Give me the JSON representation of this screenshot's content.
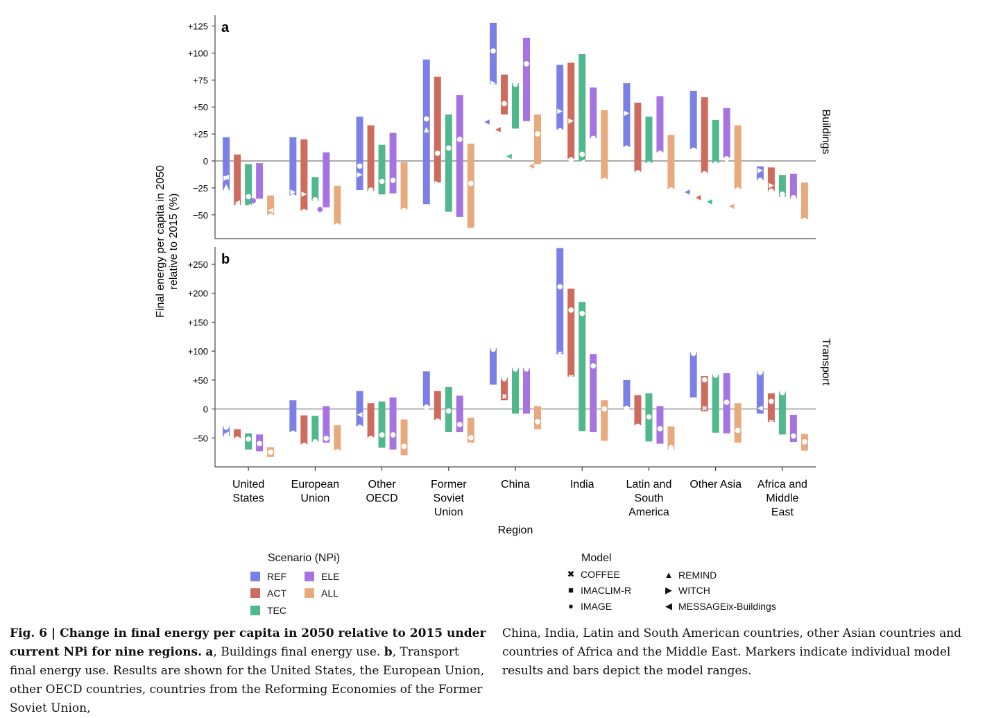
{
  "chart_data": [
    {
      "type": "range-bar",
      "panel_label": "a",
      "panel_name": "Buildings",
      "ylabel": "Final energy per capita in 2050\nrelative to 2015 (%)",
      "xlabel": "Region",
      "ylim": [
        -72,
        135
      ],
      "yticks": [
        -50,
        -25,
        0,
        25,
        50,
        75,
        100,
        125
      ],
      "yticklabels": [
        "−50",
        "−25",
        "0",
        "+25",
        "+50",
        "+75",
        "+100",
        "+125"
      ],
      "categories": [
        "United\nStates",
        "European\nUnion",
        "Other\nOECD",
        "Former\nSoviet\nUnion",
        "China",
        "India",
        "Latin and\nSouth\nAmerica",
        "Other Asia",
        "Africa and\nMiddle\nEast"
      ],
      "series": [
        {
          "name": "REF",
          "ranges": [
            [
              -27,
              22
            ],
            [
              -32,
              22
            ],
            [
              -27,
              41
            ],
            [
              -40,
              94
            ],
            [
              71,
              128
            ],
            [
              29,
              89
            ],
            [
              13,
              72
            ],
            [
              11,
              65
            ],
            [
              -18,
              -5
            ]
          ]
        },
        {
          "name": "ACT",
          "ranges": [
            [
              -41,
              6
            ],
            [
              -46,
              20
            ],
            [
              -28,
              33
            ],
            [
              -20,
              78
            ],
            [
              43,
              80
            ],
            [
              2,
              91
            ],
            [
              -10,
              54
            ],
            [
              -11,
              59
            ],
            [
              -28,
              -6
            ]
          ]
        },
        {
          "name": "TEC",
          "ranges": [
            [
              -41,
              -3
            ],
            [
              -37,
              -15
            ],
            [
              -31,
              15
            ],
            [
              -47,
              43
            ],
            [
              30,
              72
            ],
            [
              0,
              99
            ],
            [
              -2,
              41
            ],
            [
              -2,
              38
            ],
            [
              -33,
              -13
            ]
          ]
        },
        {
          "name": "ELE",
          "ranges": [
            [
              -35,
              -2
            ],
            [
              -43,
              8
            ],
            [
              -30,
              26
            ],
            [
              -52,
              61
            ],
            [
              37,
              114
            ],
            [
              21,
              68
            ],
            [
              8,
              60
            ],
            [
              3,
              49
            ],
            [
              -35,
              -12
            ]
          ]
        },
        {
          "name": "ALL",
          "ranges": [
            [
              -50,
              -32
            ],
            [
              -59,
              -23
            ],
            [
              -45,
              -1
            ],
            [
              -62,
              16
            ],
            [
              -3,
              43
            ],
            [
              -17,
              47
            ],
            [
              -26,
              24
            ],
            [
              -26,
              33
            ],
            [
              -54,
              -20
            ]
          ]
        }
      ],
      "markers": {
        "REF": [
          [
            "REMIND",
            0,
            -23
          ],
          [
            "WITCH",
            0,
            -15
          ],
          [
            "IMAGE",
            0,
            -27
          ],
          [
            "MESSAGEix-Buildings",
            0,
            -14
          ],
          [
            "IMAGE",
            1,
            -32
          ],
          [
            "WITCH",
            1,
            -28
          ],
          [
            "IMAGE",
            2,
            -4
          ],
          [
            "WITCH",
            2,
            -12
          ],
          [
            "IMAGE",
            3,
            40
          ],
          [
            "REMIND",
            3,
            30
          ],
          [
            "WITCH",
            4,
            73
          ],
          [
            "IMAGE",
            4,
            103
          ],
          [
            "MESSAGEix-Buildings",
            4,
            37
          ],
          [
            "IMAGE",
            5,
            29
          ],
          [
            "WITCH",
            5,
            47
          ],
          [
            "IMAGE",
            6,
            13
          ],
          [
            "WITCH",
            6,
            45
          ],
          [
            "IMAGE",
            7,
            11
          ],
          [
            "MESSAGEix-Buildings",
            7,
            -28
          ],
          [
            "IMAGE",
            8,
            -17
          ],
          [
            "WITCH",
            8,
            -8
          ]
        ],
        "ACT": [
          [
            "IMAGE",
            0,
            -41
          ],
          [
            "MESSAGEix-Buildings",
            0,
            -38
          ],
          [
            "IMAGE",
            1,
            -46
          ],
          [
            "WITCH",
            1,
            -30
          ],
          [
            "IMAGE",
            2,
            -26
          ],
          [
            "IMAGE",
            3,
            8
          ],
          [
            "WITCH",
            3,
            -20
          ],
          [
            "IMAGE",
            4,
            54
          ],
          [
            "MESSAGEix-Buildings",
            4,
            30
          ],
          [
            "IMAGE",
            5,
            2
          ],
          [
            "WITCH",
            5,
            38
          ],
          [
            "IMAGE",
            6,
            -10
          ],
          [
            "IMAGE",
            7,
            -11
          ],
          [
            "MESSAGEix-Buildings",
            7,
            -33
          ],
          [
            "IMAGE",
            8,
            -27
          ],
          [
            "WITCH",
            8,
            -22
          ]
        ],
        "TEC": [
          [
            "IMAGE",
            0,
            -32
          ],
          [
            "MESSAGEix-Buildings",
            0,
            -41
          ],
          [
            "IMAGE",
            1,
            -35
          ],
          [
            "IMAGE",
            2,
            -18
          ],
          [
            "IMAGE",
            3,
            13
          ],
          [
            "IMAGE",
            4,
            72
          ],
          [
            "MESSAGEix-Buildings",
            4,
            5
          ],
          [
            "IMAGE",
            5,
            7
          ],
          [
            "MESSAGEix-Buildings",
            5,
            0
          ],
          [
            "IMAGE",
            6,
            -2
          ],
          [
            "IMAGE",
            7,
            -2
          ],
          [
            "MESSAGEix-Buildings",
            7,
            -37
          ],
          [
            "IMAGE",
            8,
            -30
          ]
        ],
        "ELE": [
          [
            "IMAGE",
            0,
            -36
          ],
          [
            "IMAGE",
            1,
            -44
          ],
          [
            "IMAGE",
            2,
            -17
          ],
          [
            "IMAGE",
            3,
            21
          ],
          [
            "IMAGE",
            4,
            91
          ],
          [
            "IMAGE",
            5,
            22
          ],
          [
            "IMAGE",
            6,
            8
          ],
          [
            "IMAGE",
            7,
            3
          ],
          [
            "IMAGE",
            8,
            -33
          ]
        ],
        "ALL": [
          [
            "IMAGE",
            0,
            -50
          ],
          [
            "MESSAGEix-Buildings",
            0,
            -45
          ],
          [
            "IMAGE",
            1,
            -59
          ],
          [
            "IMAGE",
            2,
            -45
          ],
          [
            "IMAGE",
            3,
            -20
          ],
          [
            "IMAGE",
            4,
            26
          ],
          [
            "MESSAGEix-Buildings",
            4,
            -4
          ],
          [
            "IMAGE",
            5,
            -17
          ],
          [
            "IMAGE",
            6,
            -26
          ],
          [
            "IMAGE",
            7,
            -26
          ],
          [
            "MESSAGEix-Buildings",
            7,
            -41
          ],
          [
            "IMAGE",
            8,
            -54
          ]
        ]
      }
    },
    {
      "type": "range-bar",
      "panel_label": "b",
      "panel_name": "Transport",
      "ylim": [
        -100,
        280
      ],
      "yticks": [
        -50,
        0,
        50,
        100,
        150,
        200,
        250
      ],
      "yticklabels": [
        "−50",
        "0",
        "+50",
        "+100",
        "+150",
        "+200",
        "+250"
      ],
      "series": [
        {
          "name": "REF",
          "ranges": [
            [
              -47,
              -30
            ],
            [
              -40,
              15
            ],
            [
              -30,
              31
            ],
            [
              5,
              65
            ],
            [
              42,
              105
            ],
            [
              95,
              278
            ],
            [
              3,
              50
            ],
            [
              20,
              98
            ],
            [
              -8,
              65
            ]
          ]
        },
        {
          "name": "ACT",
          "ranges": [
            [
              -50,
              -35
            ],
            [
              -61,
              -11
            ],
            [
              -49,
              10
            ],
            [
              -19,
              31
            ],
            [
              15,
              54
            ],
            [
              56,
              208
            ],
            [
              -28,
              24
            ],
            [
              -4,
              57
            ],
            [
              -22,
              27
            ]
          ]
        },
        {
          "name": "TEC",
          "ranges": [
            [
              -70,
              -42
            ],
            [
              -57,
              -12
            ],
            [
              -67,
              13
            ],
            [
              -40,
              38
            ],
            [
              -8,
              71
            ],
            [
              -38,
              185
            ],
            [
              -56,
              27
            ],
            [
              -41,
              60
            ],
            [
              -44,
              30
            ]
          ]
        },
        {
          "name": "ELE",
          "ranges": [
            [
              -73,
              -44
            ],
            [
              -58,
              5
            ],
            [
              -70,
              20
            ],
            [
              -40,
              23
            ],
            [
              -8,
              71
            ],
            [
              -40,
              95
            ],
            [
              -60,
              5
            ],
            [
              -42,
              62
            ],
            [
              -57,
              -10
            ]
          ]
        },
        {
          "name": "ALL",
          "ranges": [
            [
              -83,
              -66
            ],
            [
              -72,
              -28
            ],
            [
              -80,
              -18
            ],
            [
              -58,
              -15
            ],
            [
              -35,
              5
            ],
            [
              -55,
              15
            ],
            [
              -70,
              -30
            ],
            [
              -58,
              10
            ],
            [
              -72,
              -43
            ]
          ]
        }
      ],
      "markers": {
        "REF": [
          [
            "IMAGE",
            0,
            -30
          ],
          [
            "MESSAGEix-Buildings",
            0,
            -42
          ],
          [
            "COFFEE",
            0,
            -47
          ],
          [
            "IMAGE",
            1,
            -40
          ],
          [
            "IMAGE",
            2,
            -30
          ],
          [
            "MESSAGEix-Buildings",
            2,
            -8
          ],
          [
            "IMAGE",
            3,
            5
          ],
          [
            "IMAGE",
            4,
            105
          ],
          [
            "IMAGE",
            5,
            213
          ],
          [
            "COFFEE",
            5,
            96
          ],
          [
            "IMAGE",
            6,
            3
          ],
          [
            "IMAGE",
            7,
            98
          ],
          [
            "IMAGE",
            8,
            65
          ],
          [
            "MESSAGEix-Buildings",
            8,
            3
          ]
        ],
        "ACT": [
          [
            "IMAGE",
            0,
            -50
          ],
          [
            "IMAGE",
            1,
            -61
          ],
          [
            "IMAGE",
            2,
            -49
          ],
          [
            "IMAGE",
            3,
            -19
          ],
          [
            "IMAGE",
            4,
            54
          ],
          [
            "COFFEE",
            4,
            22
          ],
          [
            "IMAGE",
            5,
            173
          ],
          [
            "COFFEE",
            5,
            56
          ],
          [
            "IMAGE",
            6,
            -28
          ],
          [
            "IMAGE",
            7,
            52
          ],
          [
            "COFFEE",
            7,
            2
          ],
          [
            "IMAGE",
            8,
            15
          ],
          [
            "COFFEE",
            8,
            -22
          ]
        ],
        "TEC": [
          [
            "IMAGE",
            0,
            -50
          ],
          [
            "IMAGE",
            1,
            -55
          ],
          [
            "IMAGE",
            2,
            -43
          ],
          [
            "IMAGE",
            3,
            -2
          ],
          [
            "IMAGE",
            4,
            71
          ],
          [
            "IMAGE",
            5,
            167
          ],
          [
            "IMAGE",
            6,
            -12
          ],
          [
            "IMAGE",
            7,
            60
          ],
          [
            "IMAGE",
            8,
            30
          ]
        ],
        "ELE": [
          [
            "IMAGE",
            0,
            -58
          ],
          [
            "IMAGE",
            1,
            -49
          ],
          [
            "IMAGE",
            2,
            -43
          ],
          [
            "IMAGE",
            3,
            -25
          ],
          [
            "IMAGE",
            4,
            71
          ],
          [
            "IMAGE",
            5,
            76
          ],
          [
            "IMAGE",
            6,
            -32
          ],
          [
            "IMAGE",
            7,
            13
          ],
          [
            "IMAGE",
            8,
            -45
          ]
        ],
        "ALL": [
          [
            "IMAGE",
            0,
            -73
          ],
          [
            "IMAGE",
            1,
            -72
          ],
          [
            "IMAGE",
            2,
            -63
          ],
          [
            "IMAGE",
            3,
            -48
          ],
          [
            "IMAGE",
            4,
            -20
          ],
          [
            "IMAGE",
            5,
            2
          ],
          [
            "IMAGE",
            6,
            -65
          ],
          [
            "IMAGE",
            7,
            -35
          ],
          [
            "IMAGE",
            8,
            -55
          ]
        ]
      }
    }
  ],
  "colors": {
    "REF": "#7b80e8",
    "ACT": "#cf6b5c",
    "TEC": "#4fb88c",
    "ELE": "#a673e3",
    "ALL": "#e8aa7c"
  },
  "legend": {
    "scenario_title": "Scenario (NPi)",
    "scenarios": [
      "REF",
      "ACT",
      "TEC",
      "ELE",
      "ALL"
    ],
    "model_title": "Model",
    "models": [
      {
        "name": "COFFEE",
        "glyph": "✖"
      },
      {
        "name": "IMACLIM-R",
        "glyph": "■"
      },
      {
        "name": "IMAGE",
        "glyph": "●"
      },
      {
        "name": "REMIND",
        "glyph": "▲"
      },
      {
        "name": "WITCH",
        "glyph": "▶"
      },
      {
        "name": "MESSAGEix-Buildings",
        "glyph": "◀"
      }
    ]
  },
  "caption": {
    "fig_label": "Fig. 6 | Change in final energy per capita in 2050 relative to 2015 under current NPi for nine regions.",
    "a_label": "a",
    "a_text": ", Buildings final energy use.",
    "b_label": "b",
    "b_text": ", Transport final energy use. Results are shown for the United States, the European Union, other OECD countries, countries from the Reforming Economies of the Former Soviet Union,",
    "right_text": "China, India, Latin and South American countries, other Asian countries and countries of Africa and the Middle East. Markers indicate individual model results and bars depict the model ranges."
  }
}
